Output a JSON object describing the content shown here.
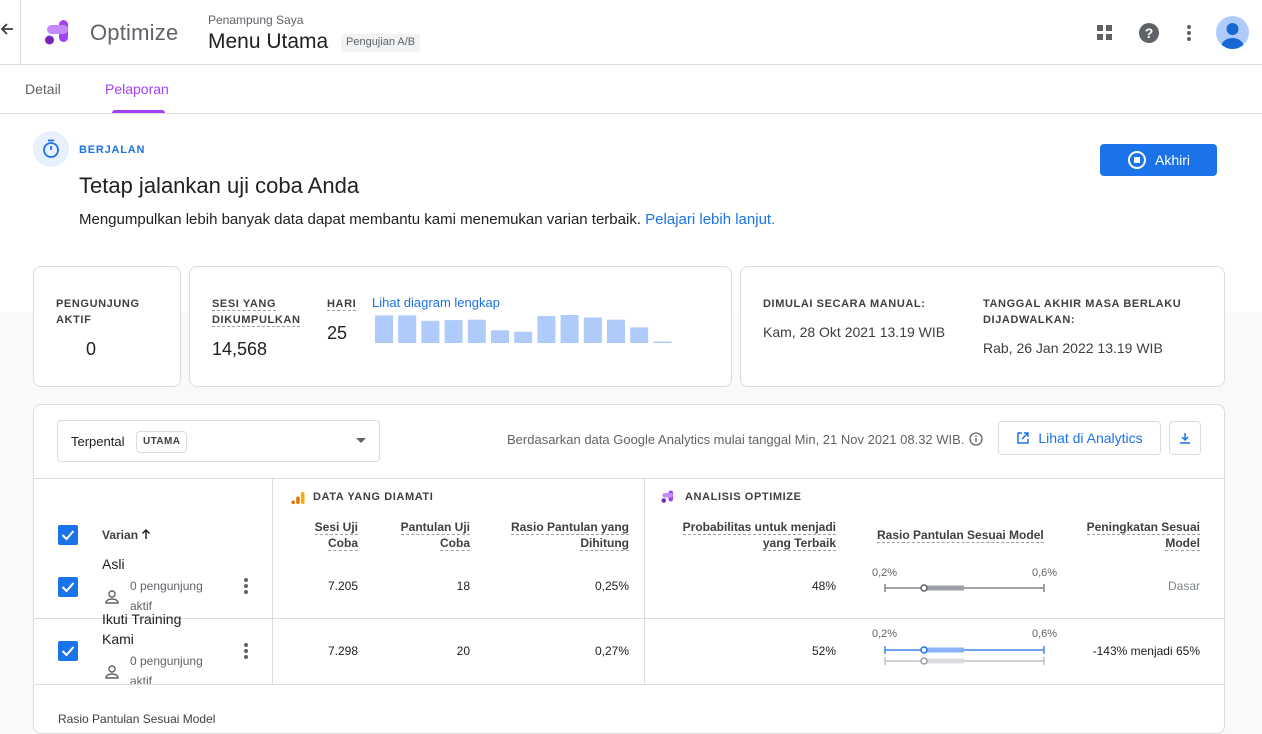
{
  "app": {
    "name": "Optimize",
    "container": "Penampung Saya",
    "experiment": "Menu Utama",
    "experiment_type": "Pengujian A/B"
  },
  "tabs": [
    {
      "label": "Detail"
    },
    {
      "label": "Pelaporan"
    }
  ],
  "status": {
    "label": "BERJALAN",
    "title": "Tetap jalankan uji coba Anda",
    "description": "Mengumpulkan lebih banyak data dapat membantu kami menemukan varian terbaik.",
    "link": "Pelajari lebih lanjut.",
    "end_button": "Akhiri"
  },
  "stats": {
    "active_label": "PENGUNJUNG AKTIF",
    "active_value": "0",
    "sessions_label": "SESI YANG DIKUMPULKAN",
    "sessions_value": "14,568",
    "days_label": "HARI",
    "days_value": "25",
    "chart_link": "Lihat diagram lengkap",
    "daily_sessions": [
      760,
      760,
      610,
      630,
      640,
      350,
      310,
      740,
      770,
      700,
      640,
      430,
      40
    ],
    "started_label": "DIMULAI SECARA MANUAL:",
    "started_value": "Kam, 28 Okt 2021 13.19 WIB",
    "end_label": "TANGGAL AKHIR MASA BERLAKU DIJADWALKAN:",
    "end_value": "Rab, 26 Jan 2022 13.19 WIB"
  },
  "report": {
    "objective": "Terpental",
    "objective_tag": "UTAMA",
    "based_on": "Berdasarkan data Google Analytics mulai tanggal Min, 21 Nov 2021 08.32 WIB.",
    "analytics_button": "Lihat di Analytics",
    "observed_title": "DATA YANG DIAMATI",
    "optimize_title": "ANALISIS OPTIMIZE",
    "col_variant": "Varian",
    "col_sessions": "Sesi Uji Coba",
    "col_bounces": "Pantulan Uji Coba",
    "col_rate": "Rasio Pantulan yang Dihitung",
    "col_prob": "Probabilitas untuk menjadi yang Terbaik",
    "col_model_rate": "Rasio Pantulan Sesuai Model",
    "col_improvement": "Peningkatan Sesuai Model",
    "rows": [
      {
        "name": "Asli",
        "visitors": "0 pengunjung aktif",
        "sessions": "7.205",
        "bounces": "18",
        "rate": "0,25%",
        "prob": "48%",
        "range_min": "0,2%",
        "range_max": "0,6%",
        "improvement": "Dasar"
      },
      {
        "name": "Ikuti Training Kami",
        "visitors": "0 pengunjung aktif",
        "sessions": "7.298",
        "bounces": "20",
        "rate": "0,27%",
        "prob": "52%",
        "range_min": "0,2%",
        "range_max": "0,6%",
        "improvement": "-143% menjadi 65%"
      }
    ],
    "below_label": "Rasio Pantulan Sesuai Model"
  },
  "colors": {
    "accent": "#1a73e8",
    "brand": "#a142f4",
    "bar": "#aecbfa"
  }
}
